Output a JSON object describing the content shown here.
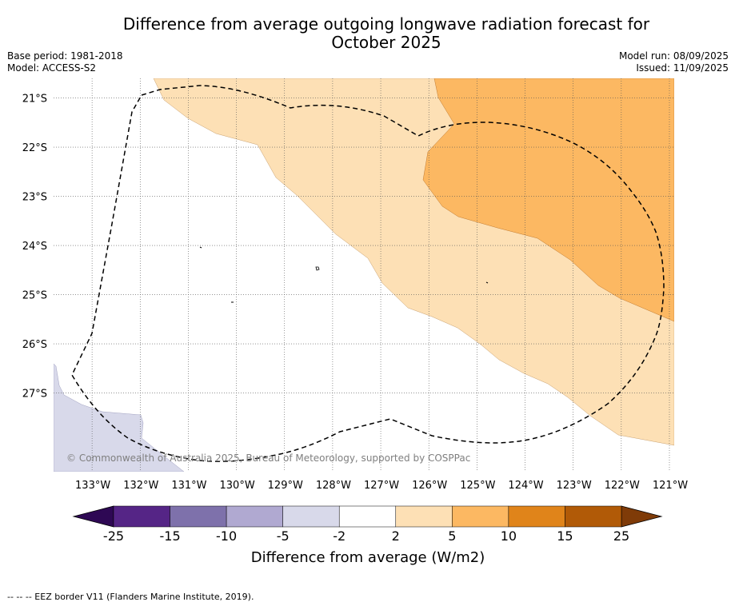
{
  "title_line1": "Difference from average outgoing longwave radiation forecast for",
  "title_line2": "October 2025",
  "meta": {
    "base_period": "Base period: 1981-2018",
    "model": "Model: ACCESS-S2",
    "model_run": "Model run: 08/09/2025",
    "issued": "Issued: 11/09/2025"
  },
  "map": {
    "lon_range": [
      -133.8,
      -120.9
    ],
    "lat_range": [
      -28.6,
      -20.6
    ],
    "lon_ticks": [
      -133,
      -132,
      -131,
      -130,
      -129,
      -128,
      -127,
      -126,
      -125,
      -124,
      -123,
      -122,
      -121
    ],
    "lon_tick_labels": [
      "133°W",
      "132°W",
      "131°W",
      "130°W",
      "129°W",
      "128°W",
      "127°W",
      "126°W",
      "125°W",
      "124°W",
      "123°W",
      "122°W",
      "121°W"
    ],
    "lat_ticks": [
      -21,
      -22,
      -23,
      -24,
      -25,
      -26,
      -27
    ],
    "lat_tick_labels": [
      "21°S",
      "22°S",
      "23°S",
      "24°S",
      "25°S",
      "26°S",
      "27°S"
    ],
    "gridlines": true,
    "copyright": "© Commonwealth of Australia 2025, Bureau of Meteorology, supported by COSPPac"
  },
  "colorbar": {
    "title": "Difference from average (W/m2)",
    "labels": [
      "-25",
      "-15",
      "-10",
      "-5",
      "-2",
      "2",
      "5",
      "10",
      "15",
      "25"
    ],
    "colors": [
      "#552586",
      "#7e71ab",
      "#b0a9d1",
      "#d8d9ea",
      "#ffffff",
      "#fde0b5",
      "#fcb862",
      "#e0841a",
      "#b15a07"
    ],
    "extend_min_color": "#2e0854",
    "extend_max_color": "#7f3b08"
  },
  "footnote": "--  --  -- EEZ border V11 (Flanders Marine Institute, 2019)."
}
